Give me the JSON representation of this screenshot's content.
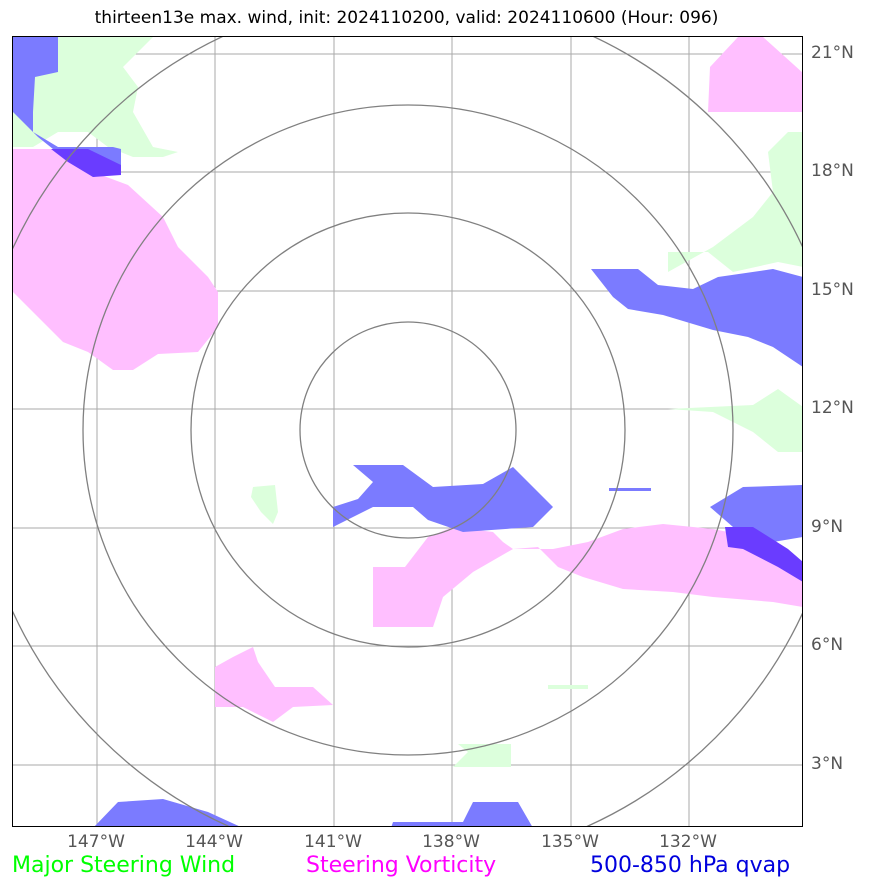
{
  "title": "thirteen13e max. wind, init: 2024110200, valid: 2024110600 (Hour: 096)",
  "lat_labels": [
    "21°N",
    "18°N",
    "15°N",
    "12°N",
    "9°N",
    "6°N",
    "3°N"
  ],
  "lon_labels": [
    "147°W",
    "144°W",
    "141°W",
    "138°W",
    "135°W",
    "132°W"
  ],
  "legend": {
    "wind": "Major Steering Wind",
    "vorticity": "Steering Vorticity",
    "qvap": "500-850 hPa qvap"
  },
  "colors": {
    "wind": "#00ff00",
    "vorticity": "#ff00ff",
    "qvap": "#0000dd",
    "wind_fill": "#dcffdc",
    "vorticity_fill": "#ffbfff",
    "qvap_fill": "#7b7bff",
    "grid": "#aaaaaa",
    "rings": "#808080"
  }
}
